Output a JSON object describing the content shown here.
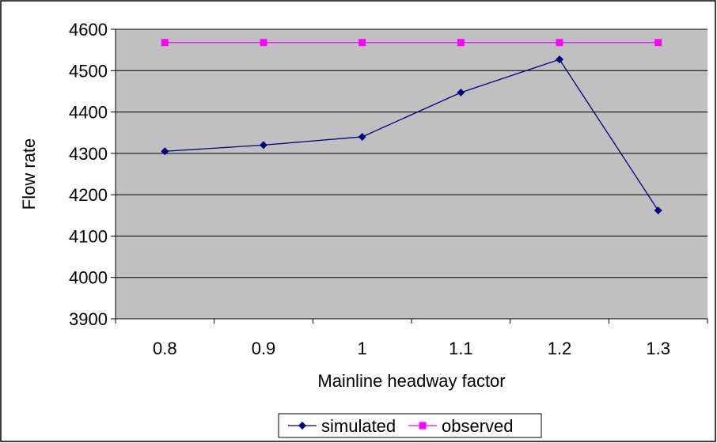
{
  "chart_data": {
    "type": "line",
    "title": "",
    "xlabel": "Mainline headway factor",
    "ylabel": "Flow rate",
    "categories": [
      "0.8",
      "0.9",
      "1",
      "1.1",
      "1.2",
      "1.3"
    ],
    "ylim": [
      3900,
      4600
    ],
    "yticks": [
      "3900",
      "4000",
      "4100",
      "4200",
      "4300",
      "4400",
      "4500",
      "4600"
    ],
    "grid": "horizontal",
    "plot_background": "#c0c0c0",
    "legend_position": "bottom",
    "series": [
      {
        "name": "simulated",
        "values": [
          4305,
          4320,
          4340,
          4447,
          4527,
          4162
        ],
        "color": "#000080",
        "marker": "diamond"
      },
      {
        "name": "observed",
        "values": [
          4568,
          4568,
          4568,
          4568,
          4568,
          4568
        ],
        "color": "#ff00ff",
        "marker": "square"
      }
    ]
  }
}
